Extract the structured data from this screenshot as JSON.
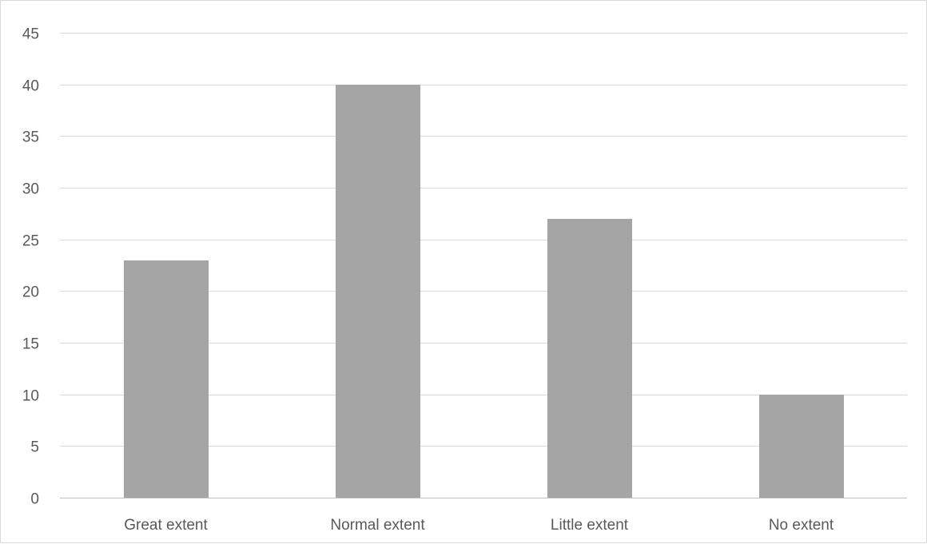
{
  "chart_data": {
    "type": "bar",
    "categories": [
      "Great extent",
      "Normal extent",
      "Little extent",
      "No extent"
    ],
    "values": [
      23,
      40,
      27,
      10
    ],
    "title": "",
    "xlabel": "",
    "ylabel": "",
    "ylim": [
      0,
      45
    ],
    "ytick_step": 5,
    "yticks": [
      "0",
      "5",
      "10",
      "15",
      "20",
      "25",
      "30",
      "35",
      "40",
      "45"
    ],
    "grid": true,
    "legend": "none",
    "colors": {
      "bar": "#a5a5a5",
      "grid": "#d9d9d9",
      "axis": "#bfbfbf",
      "text": "#595959"
    }
  }
}
